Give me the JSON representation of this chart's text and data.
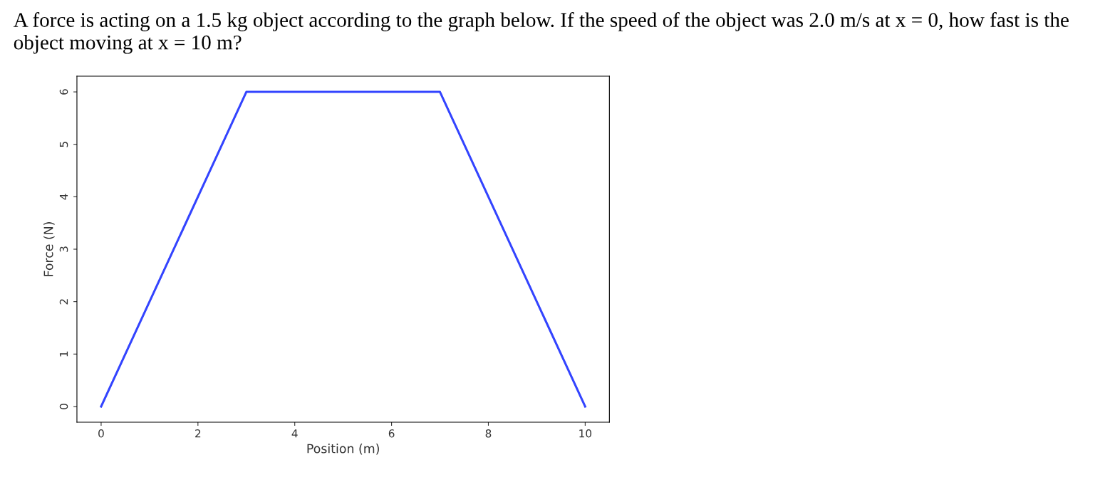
{
  "chart_data": {
    "type": "line",
    "title": "A force is acting on a 1.5 kg object according to the graph below. If the speed of the object was 2.0 m/s at x = 0, how fast is the object moving at x = 10 m?",
    "xlabel": "Position (m)",
    "ylabel": "Force (N)",
    "x": [
      0,
      3,
      7,
      10
    ],
    "series": [
      {
        "color": "#3344ff",
        "values": [
          0,
          6,
          6,
          0
        ]
      }
    ],
    "xlim": [
      -0.5,
      10.5
    ],
    "ylim": [
      -0.3,
      6.3
    ],
    "xticks": [
      0,
      2,
      4,
      6,
      8,
      10
    ],
    "yticks": [
      0,
      1,
      2,
      3,
      4,
      5,
      6
    ],
    "grid": false,
    "legend": false,
    "marker": "none",
    "line_style": "solid"
  }
}
